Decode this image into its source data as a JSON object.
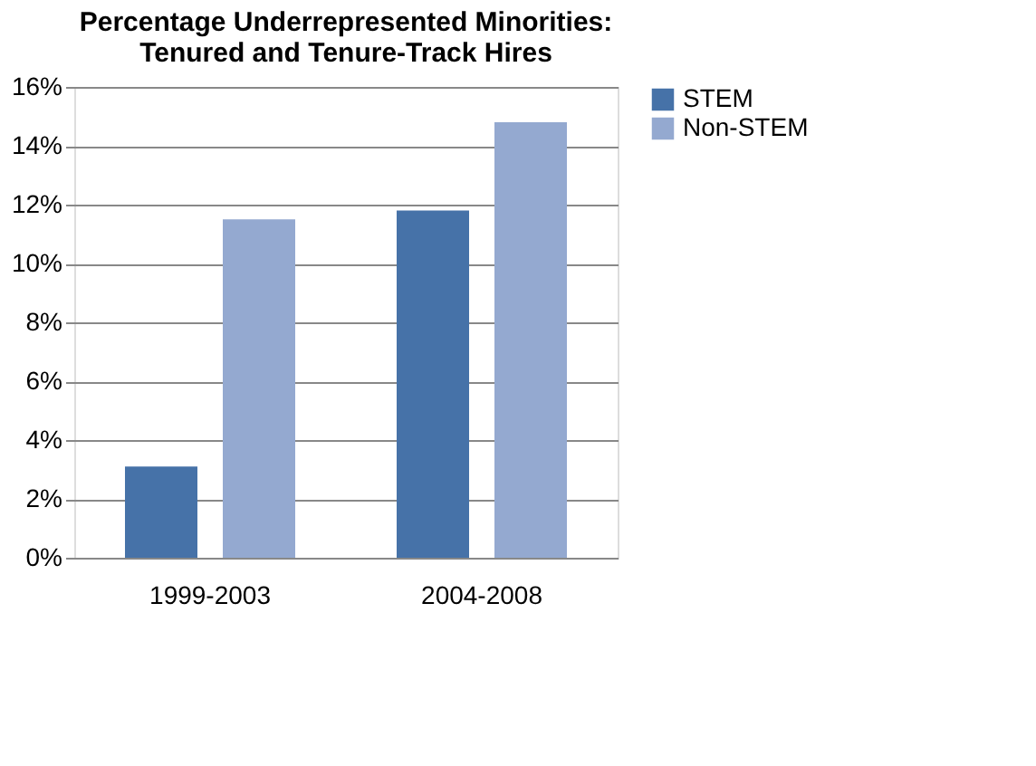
{
  "chart_data": {
    "type": "bar",
    "title": [
      "Percentage Underrepresented Minorities:",
      "Tenured and Tenure-Track Hires"
    ],
    "categories": [
      "1999-2003",
      "2004-2008"
    ],
    "series": [
      {
        "name": "STEM",
        "color": "#4672a8",
        "values": [
          3.1,
          11.8
        ]
      },
      {
        "name": "Non-STEM",
        "color": "#94a9d0",
        "values": [
          11.5,
          14.8
        ]
      }
    ],
    "ylim": [
      0,
      16
    ],
    "yticks": [
      {
        "value": 0,
        "label": "0%"
      },
      {
        "value": 2,
        "label": "2%"
      },
      {
        "value": 4,
        "label": "4%"
      },
      {
        "value": 6,
        "label": "6%"
      },
      {
        "value": 8,
        "label": "8%"
      },
      {
        "value": 10,
        "label": "10%"
      },
      {
        "value": 12,
        "label": "12%"
      },
      {
        "value": 14,
        "label": "14%"
      },
      {
        "value": 16,
        "label": "16%"
      }
    ],
    "grid": "y",
    "legend": "right"
  }
}
